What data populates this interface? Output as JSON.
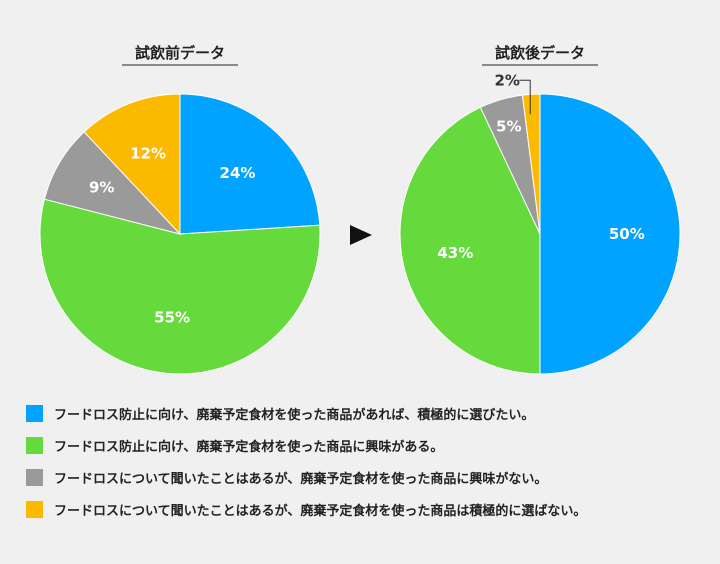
{
  "chart_data": [
    {
      "type": "pie",
      "title": "試飲前データ",
      "categories": [
        "フードロス防止に向け、廃棄予定食材を使った商品があれば、積極的に選びたい。",
        "フードロス防止に向け、廃棄予定食材を使った商品に興味がある。",
        "フードロスについて聞いたことはあるが、廃棄予定食材を使った商品に興味がない。",
        "フードロスについて聞いたことはあるが、廃棄予定食材を使った商品は積極的に選ばない。"
      ],
      "values": [
        24,
        55,
        9,
        12
      ],
      "labels": [
        "24%",
        "55%",
        "9%",
        "12%"
      ]
    },
    {
      "type": "pie",
      "title": "試飲後データ",
      "categories": [
        "フードロス防止に向け、廃棄予定食材を使った商品があれば、積極的に選びたい。",
        "フードロス防止に向け、廃棄予定食材を使った商品に興味がある。",
        "フードロスについて聞いたことはあるが、廃棄予定食材を使った商品に興味がない。",
        "フードロスについて聞いたことはあるが、廃棄予定食材を使った商品は積極的に選ばない。"
      ],
      "values": [
        50,
        43,
        5,
        2
      ],
      "labels": [
        "50%",
        "43%",
        "5%",
        "2%"
      ]
    }
  ],
  "colors": [
    "#00a3ff",
    "#66d93d",
    "#9a9a9a",
    "#fbb900"
  ],
  "legend": {
    "placement": "bottom",
    "items": [
      "フードロス防止に向け、廃棄予定食材を使った商品があれば、積極的に選びたい。",
      "フードロス防止に向け、廃棄予定食材を使った商品に興味がある。",
      "フードロスについて聞いたことはあるが、廃棄予定食材を使った商品に興味がない。",
      "フードロスについて聞いたことはあるが、廃棄予定食材を使った商品は積極的に選ばない。"
    ]
  },
  "arrow_icon": "play-arrow-icon"
}
